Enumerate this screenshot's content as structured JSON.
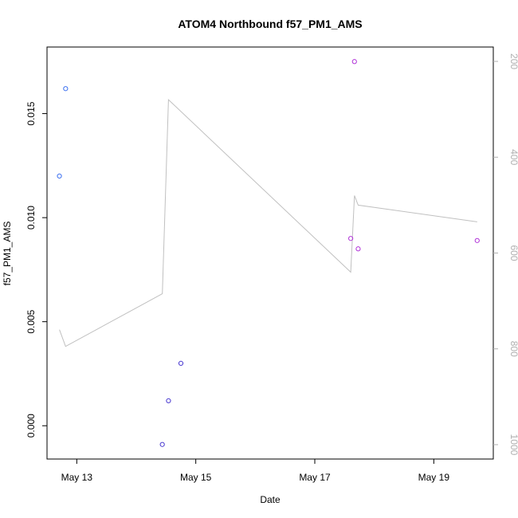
{
  "chart_data": {
    "type": "scatter",
    "title": "ATOM4 Northbound f57_PM1_AMS",
    "xlabel": "Date",
    "ylabel": "f57_PM1_AMS",
    "xlim": [
      "2013-05-12 12:00",
      "2013-05-20 00:00"
    ],
    "ylim": [
      -0.0016,
      0.0182
    ],
    "x_ticks": [
      {
        "label": "May 13",
        "x": "2013-05-13 00:00"
      },
      {
        "label": "May 15",
        "x": "2013-05-15 00:00"
      },
      {
        "label": "May 17",
        "x": "2013-05-17 00:00"
      },
      {
        "label": "May 19",
        "x": "2013-05-19 00:00"
      }
    ],
    "y_ticks": [
      {
        "label": "0.000",
        "value": 0.0
      },
      {
        "label": "0.005",
        "value": 0.005
      },
      {
        "label": "0.010",
        "value": 0.01
      },
      {
        "label": "0.015",
        "value": 0.015
      }
    ],
    "y2lim": [
      1030,
      170
    ],
    "y2_ticks": [
      {
        "label": "200",
        "value": 200
      },
      {
        "label": "400",
        "value": 400
      },
      {
        "label": "600",
        "value": 600
      },
      {
        "label": "800",
        "value": 800
      },
      {
        "label": "1000",
        "value": 1000
      }
    ],
    "points": [
      {
        "x": "2013-05-12 17:00",
        "y": 0.012,
        "color": "#3a6ff0"
      },
      {
        "x": "2013-05-12 19:30",
        "y": 0.0162,
        "color": "#3a6ff0"
      },
      {
        "x": "2013-05-14 10:30",
        "y": -0.0009,
        "color": "#4a3ad0"
      },
      {
        "x": "2013-05-14 13:00",
        "y": 0.0012,
        "color": "#4a3ad0"
      },
      {
        "x": "2013-05-14 18:00",
        "y": 0.003,
        "color": "#4a3ad0"
      },
      {
        "x": "2013-05-17 14:30",
        "y": 0.009,
        "color": "#b030d8"
      },
      {
        "x": "2013-05-17 16:00",
        "y": 0.0175,
        "color": "#b030d8"
      },
      {
        "x": "2013-05-17 17:30",
        "y": 0.0085,
        "color": "#b030d8"
      },
      {
        "x": "2013-05-19 17:30",
        "y": 0.0089,
        "color": "#b030d8"
      }
    ],
    "secondary_line": {
      "color": "#c0c0c0",
      "points": [
        {
          "x": "2013-05-12 17:00",
          "y2": 760
        },
        {
          "x": "2013-05-12 19:30",
          "y2": 795
        },
        {
          "x": "2013-05-14 10:30",
          "y2": 685
        },
        {
          "x": "2013-05-14 13:00",
          "y2": 280
        },
        {
          "x": "2013-05-17 14:30",
          "y2": 640
        },
        {
          "x": "2013-05-17 16:00",
          "y2": 480
        },
        {
          "x": "2013-05-17 17:30",
          "y2": 500
        },
        {
          "x": "2013-05-19 17:30",
          "y2": 535
        }
      ]
    },
    "grid": false,
    "legend": "none"
  }
}
